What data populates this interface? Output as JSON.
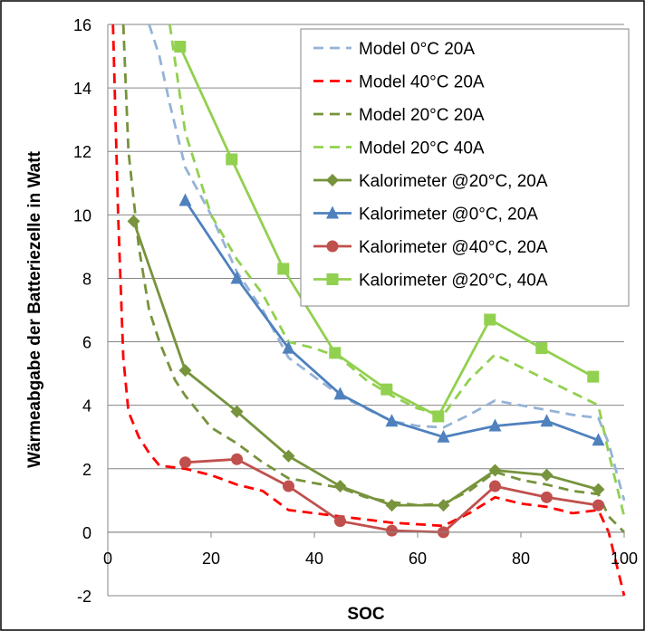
{
  "chart_data": {
    "type": "line",
    "title": "",
    "xlabel": "SOC",
    "ylabel": "Wärmeabgabe der Batteriezelle in Watt",
    "xlim": [
      0,
      100
    ],
    "ylim": [
      -2,
      16
    ],
    "x_ticks": [
      0,
      20,
      40,
      60,
      80,
      100
    ],
    "y_ticks": [
      -2,
      0,
      2,
      4,
      6,
      8,
      10,
      12,
      14,
      16
    ],
    "grid": "horizontal",
    "legend_position": "top-right",
    "series": [
      {
        "name": "Model 0°C 20A",
        "style": "dashed",
        "color": "#95b3d7",
        "points": [
          [
            8,
            16
          ],
          [
            10,
            15
          ],
          [
            12,
            13.5
          ],
          [
            15,
            11.5
          ],
          [
            20,
            10
          ],
          [
            25,
            8.2
          ],
          [
            30,
            7
          ],
          [
            35,
            5.5
          ],
          [
            40,
            4.9
          ],
          [
            45,
            4.3
          ],
          [
            50,
            3.9
          ],
          [
            55,
            3.5
          ],
          [
            60,
            3.35
          ],
          [
            65,
            3.3
          ],
          [
            70,
            3.7
          ],
          [
            75,
            4.15
          ],
          [
            80,
            4.0
          ],
          [
            85,
            3.85
          ],
          [
            90,
            3.7
          ],
          [
            95,
            3.6
          ],
          [
            97,
            2.8
          ],
          [
            100,
            1.0
          ]
        ]
      },
      {
        "name": "Model 40°C 20A",
        "style": "dashed",
        "color": "#ff0000",
        "points": [
          [
            1,
            16
          ],
          [
            2,
            10
          ],
          [
            3,
            5.5
          ],
          [
            4,
            3.8
          ],
          [
            6,
            3.0
          ],
          [
            8,
            2.5
          ],
          [
            10,
            2.1
          ],
          [
            15,
            2.0
          ],
          [
            20,
            1.8
          ],
          [
            25,
            1.5
          ],
          [
            30,
            1.3
          ],
          [
            35,
            0.7
          ],
          [
            40,
            0.6
          ],
          [
            45,
            0.5
          ],
          [
            50,
            0.4
          ],
          [
            55,
            0.3
          ],
          [
            60,
            0.25
          ],
          [
            65,
            0.2
          ],
          [
            70,
            0.6
          ],
          [
            75,
            1.1
          ],
          [
            80,
            0.9
          ],
          [
            85,
            0.8
          ],
          [
            90,
            0.6
          ],
          [
            95,
            0.7
          ],
          [
            97,
            0
          ],
          [
            100,
            -2
          ]
        ]
      },
      {
        "name": "Model 20°C 20A",
        "style": "dashed",
        "color": "#77933c",
        "points": [
          [
            3,
            16
          ],
          [
            4,
            12
          ],
          [
            6,
            9
          ],
          [
            8,
            7
          ],
          [
            10,
            6
          ],
          [
            13,
            4.8
          ],
          [
            15,
            4.3
          ],
          [
            20,
            3.3
          ],
          [
            25,
            2.8
          ],
          [
            30,
            2.2
          ],
          [
            35,
            1.7
          ],
          [
            40,
            1.55
          ],
          [
            45,
            1.4
          ],
          [
            50,
            1.1
          ],
          [
            55,
            0.95
          ],
          [
            60,
            0.85
          ],
          [
            65,
            0.9
          ],
          [
            70,
            1.3
          ],
          [
            75,
            1.9
          ],
          [
            80,
            1.65
          ],
          [
            85,
            1.5
          ],
          [
            90,
            1.3
          ],
          [
            95,
            1.2
          ],
          [
            97,
            0.5
          ],
          [
            100,
            0
          ]
        ]
      },
      {
        "name": "Model 20°C 40A",
        "style": "dashed",
        "color": "#92d050",
        "points": [
          [
            12,
            16
          ],
          [
            15,
            12.6
          ],
          [
            20,
            10
          ],
          [
            25,
            8.6
          ],
          [
            30,
            7.5
          ],
          [
            35,
            6.0
          ],
          [
            40,
            5.8
          ],
          [
            45,
            5.5
          ],
          [
            50,
            4.8
          ],
          [
            55,
            4.3
          ],
          [
            60,
            3.9
          ],
          [
            65,
            3.7
          ],
          [
            70,
            4.8
          ],
          [
            75,
            5.6
          ],
          [
            80,
            5.2
          ],
          [
            85,
            4.8
          ],
          [
            90,
            4.4
          ],
          [
            95,
            4.0
          ],
          [
            97,
            2.5
          ],
          [
            100,
            0.5
          ]
        ]
      },
      {
        "name": "Kalorimeter @20°C, 20A",
        "style": "solid",
        "marker": "diamond",
        "color": "#77933c",
        "points": [
          [
            5,
            9.8
          ],
          [
            15,
            5.1
          ],
          [
            25,
            3.8
          ],
          [
            35,
            2.4
          ],
          [
            45,
            1.45
          ],
          [
            55,
            0.85
          ],
          [
            65,
            0.85
          ],
          [
            75,
            1.95
          ],
          [
            85,
            1.8
          ],
          [
            95,
            1.35
          ]
        ]
      },
      {
        "name": "Kalorimeter @0°C, 20A",
        "style": "solid",
        "marker": "triangle",
        "color": "#4f81bd",
        "points": [
          [
            15,
            10.45
          ],
          [
            25,
            8.0
          ],
          [
            35,
            5.8
          ],
          [
            45,
            4.35
          ],
          [
            55,
            3.5
          ],
          [
            65,
            3.0
          ],
          [
            75,
            3.35
          ],
          [
            85,
            3.5
          ],
          [
            95,
            2.9
          ]
        ]
      },
      {
        "name": "Kalorimeter @40°C, 20A",
        "style": "solid",
        "marker": "circle",
        "color": "#c0504d",
        "points": [
          [
            15,
            2.2
          ],
          [
            25,
            2.3
          ],
          [
            35,
            1.45
          ],
          [
            45,
            0.35
          ],
          [
            55,
            0.05
          ],
          [
            65,
            0.0
          ],
          [
            75,
            1.45
          ],
          [
            85,
            1.1
          ],
          [
            95,
            0.85
          ]
        ]
      },
      {
        "name": "Kalorimeter @20°C, 40A",
        "style": "solid",
        "marker": "square",
        "color": "#92d050",
        "points": [
          [
            14,
            15.3
          ],
          [
            24,
            11.75
          ],
          [
            34,
            8.3
          ],
          [
            44,
            5.65
          ],
          [
            54,
            4.5
          ],
          [
            64,
            3.65
          ],
          [
            74,
            6.7
          ],
          [
            84,
            5.8
          ],
          [
            94,
            4.9
          ]
        ]
      }
    ]
  },
  "colors": {
    "grid": "#868686",
    "axis": "#868686",
    "frame": "#000000",
    "legend_border": "#868686"
  }
}
